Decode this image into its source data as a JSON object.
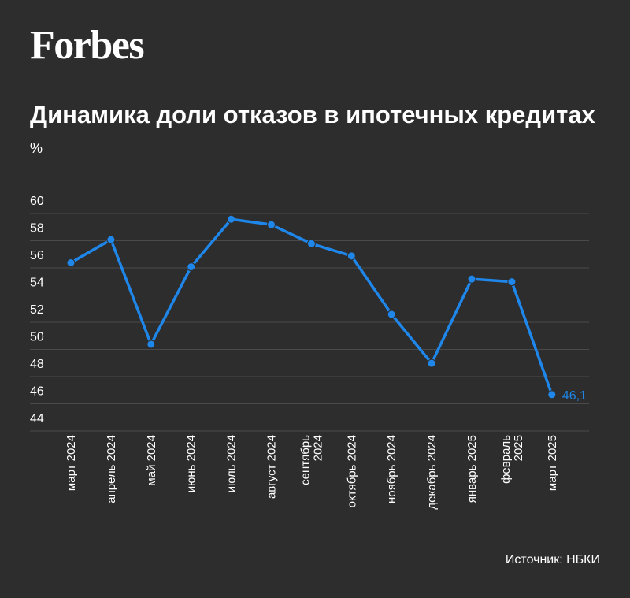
{
  "logo": "Forbes",
  "source": "Источник: НБКИ",
  "colors": {
    "background": "#2d2d2d",
    "series": "#1f86ea",
    "grid": "#4a4a4a"
  },
  "chart_data": {
    "type": "line",
    "title": "Динамика доли отказов в ипотечных кредитах",
    "ylabel": "%",
    "xlabel": "",
    "ylim": [
      44,
      60
    ],
    "yticks": [
      44,
      46,
      48,
      50,
      52,
      54,
      56,
      58,
      60
    ],
    "grid": true,
    "categories": [
      [
        "март 2024"
      ],
      [
        "апрель 2024"
      ],
      [
        "май 2024"
      ],
      [
        "июнь 2024"
      ],
      [
        "июль 2024"
      ],
      [
        "август 2024"
      ],
      [
        "сентябрь",
        "2024"
      ],
      [
        "октябрь 2024"
      ],
      [
        "ноябрь 2024"
      ],
      [
        "декабрь 2024"
      ],
      [
        "январь 2025"
      ],
      [
        "февраль",
        "2025"
      ],
      [
        "март 2025"
      ]
    ],
    "series": [
      {
        "values": [
          55.8,
          57.5,
          49.8,
          55.5,
          59.0,
          58.6,
          57.2,
          56.3,
          52.0,
          48.4,
          54.6,
          54.4,
          46.1
        ]
      }
    ],
    "data_labels": [
      {
        "index": 12,
        "text": "46,1"
      }
    ]
  }
}
